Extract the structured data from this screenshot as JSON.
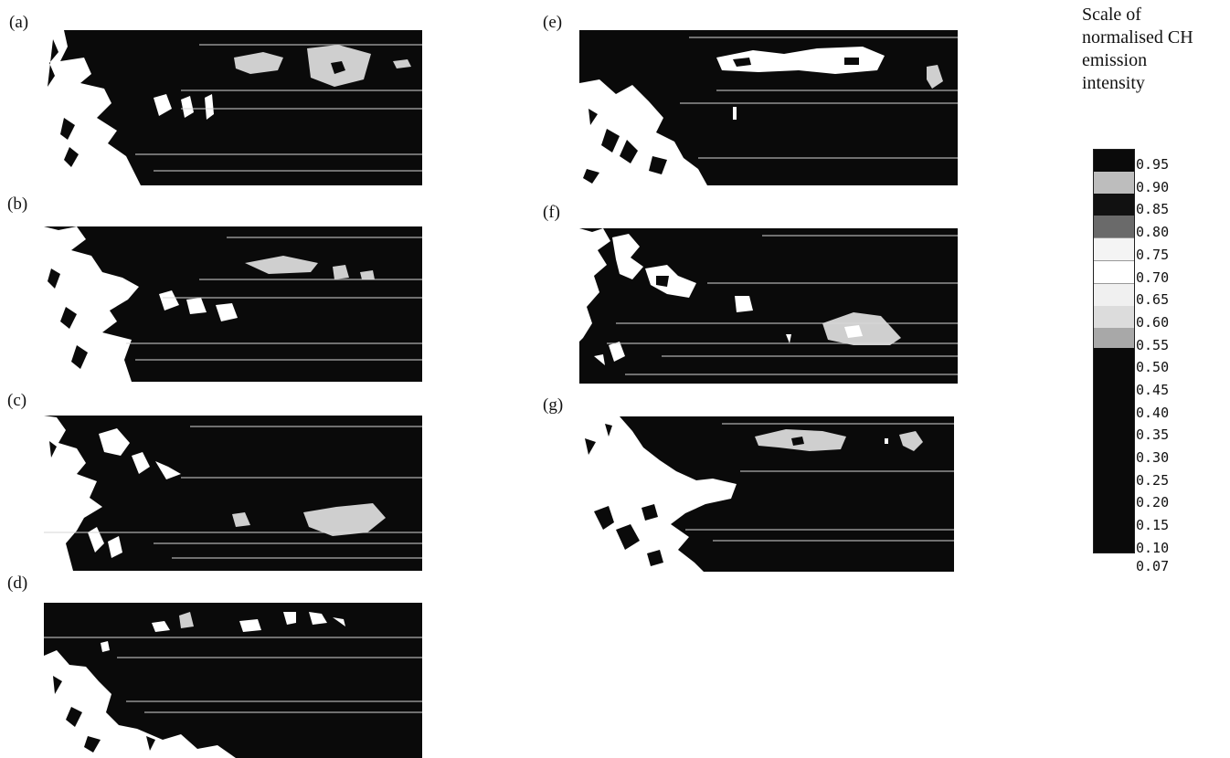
{
  "panels": [
    {
      "id": "a",
      "label": "(a)"
    },
    {
      "id": "b",
      "label": "(b)"
    },
    {
      "id": "c",
      "label": "(c)"
    },
    {
      "id": "d",
      "label": "(d)"
    },
    {
      "id": "e",
      "label": "(e)"
    },
    {
      "id": "f",
      "label": "(f)"
    },
    {
      "id": "g",
      "label": "(g)"
    }
  ],
  "scale": {
    "title_lines": [
      "Scale of",
      "normalised CH",
      "emission",
      "intensity"
    ],
    "ticks": [
      "0.95",
      "0.90",
      "0.85",
      "0.80",
      "0.75",
      "0.70",
      "0.65",
      "0.60",
      "0.55",
      "0.50",
      "0.45",
      "0.40",
      "0.35",
      "0.30",
      "0.25",
      "0.20",
      "0.15",
      "0.10",
      "0.07"
    ]
  },
  "colors": {
    "dark": "#0a0a0a",
    "white": "#ffffff",
    "stipple": "#cfcfcf",
    "line": "#d8d8d8"
  }
}
